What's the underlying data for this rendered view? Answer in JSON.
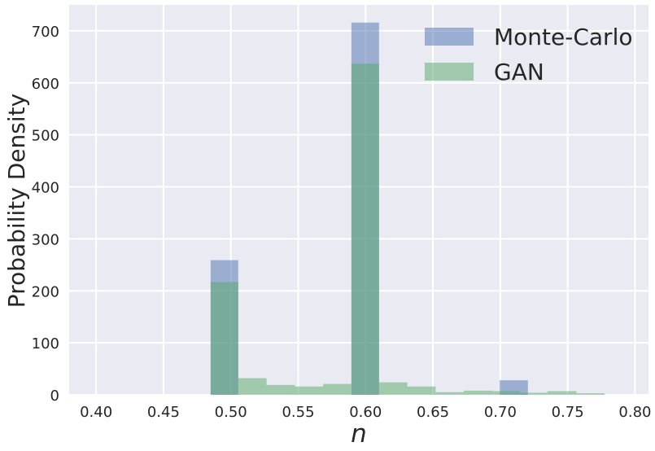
{
  "chart_data": {
    "type": "bar",
    "subtype": "overlapping-histogram",
    "title": "",
    "xlabel": "n",
    "ylabel": "Probability Density",
    "xlim": [
      0.38,
      0.81
    ],
    "ylim": [
      0,
      750
    ],
    "xticks": [
      0.4,
      0.45,
      0.5,
      0.55,
      0.6,
      0.65,
      0.7,
      0.75,
      0.8
    ],
    "xtick_labels": [
      "0.40",
      "0.45",
      "0.50",
      "0.55",
      "0.60",
      "0.65",
      "0.70",
      "0.75",
      "0.80"
    ],
    "yticks": [
      0,
      100,
      200,
      300,
      400,
      500,
      600,
      700
    ],
    "ytick_labels": [
      "0",
      "100",
      "200",
      "300",
      "400",
      "500",
      "600",
      "700"
    ],
    "grid": true,
    "legend_position": "top-right",
    "series": [
      {
        "name": "Monte-Carlo",
        "color": "#4c72b0",
        "alpha": 0.5,
        "bins": [
          {
            "x0": 0.485,
            "x1": 0.5055,
            "value": 259
          },
          {
            "x0": 0.5895,
            "x1": 0.61,
            "value": 716
          },
          {
            "x0": 0.6995,
            "x1": 0.7205,
            "value": 28
          }
        ]
      },
      {
        "name": "GAN",
        "color": "#55a868",
        "alpha": 0.5,
        "bins": [
          {
            "x0": 0.485,
            "x1": 0.5055,
            "value": 217
          },
          {
            "x0": 0.5055,
            "x1": 0.5265,
            "value": 32
          },
          {
            "x0": 0.5265,
            "x1": 0.5475,
            "value": 19
          },
          {
            "x0": 0.5475,
            "x1": 0.5685,
            "value": 16
          },
          {
            "x0": 0.5685,
            "x1": 0.5895,
            "value": 21
          },
          {
            "x0": 0.5895,
            "x1": 0.61,
            "value": 637
          },
          {
            "x0": 0.61,
            "x1": 0.631,
            "value": 24
          },
          {
            "x0": 0.631,
            "x1": 0.652,
            "value": 16
          },
          {
            "x0": 0.652,
            "x1": 0.673,
            "value": 5
          },
          {
            "x0": 0.673,
            "x1": 0.694,
            "value": 8
          },
          {
            "x0": 0.694,
            "x1": 0.7145,
            "value": 7
          },
          {
            "x0": 0.7145,
            "x1": 0.735,
            "value": 4
          },
          {
            "x0": 0.735,
            "x1": 0.7565,
            "value": 7
          },
          {
            "x0": 0.7565,
            "x1": 0.7775,
            "value": 3
          }
        ]
      }
    ],
    "colors": {
      "plot_background": "#eaeaf2",
      "grid": "#ffffff",
      "text": "#262626"
    }
  }
}
